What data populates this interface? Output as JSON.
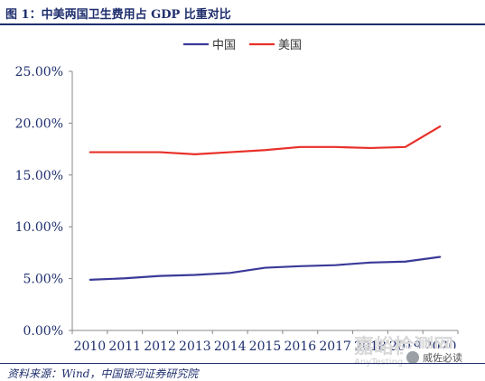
{
  "figure": {
    "title": "图 1：中美两国卫生费用占 GDP 比重对比",
    "source": "资料来源：Wind，中国银河证券研究院"
  },
  "watermark": {
    "text": "嘉峪检测网",
    "url_text": "AnyTesting.com",
    "badge_text": "威佐必读",
    "badge_icon": "wechat-icon"
  },
  "colors": {
    "china": "#3a3a99",
    "usa": "#e8302a",
    "axis": "#888888",
    "text": "#1f2f6e"
  },
  "chart_data": {
    "type": "line",
    "title": "图 1：中美两国卫生费用占 GDP 比重对比",
    "xlabel": "",
    "ylabel": "",
    "categories": [
      "2010",
      "2011",
      "2012",
      "2013",
      "2014",
      "2015",
      "2016",
      "2017",
      "2018",
      "2019",
      "2020"
    ],
    "series": [
      {
        "name": "中国",
        "values": [
          4.89,
          5.03,
          5.26,
          5.36,
          5.55,
          6.05,
          6.2,
          6.3,
          6.55,
          6.64,
          7.1
        ]
      },
      {
        "name": "美国",
        "values": [
          17.2,
          17.2,
          17.2,
          17.0,
          17.2,
          17.4,
          17.7,
          17.7,
          17.6,
          17.7,
          19.7
        ]
      }
    ],
    "ylim": [
      0,
      25
    ],
    "yticks": [
      "0.00%",
      "5.00%",
      "10.00%",
      "15.00%",
      "20.00%",
      "25.00%"
    ],
    "grid": false,
    "legend": "top-center"
  }
}
